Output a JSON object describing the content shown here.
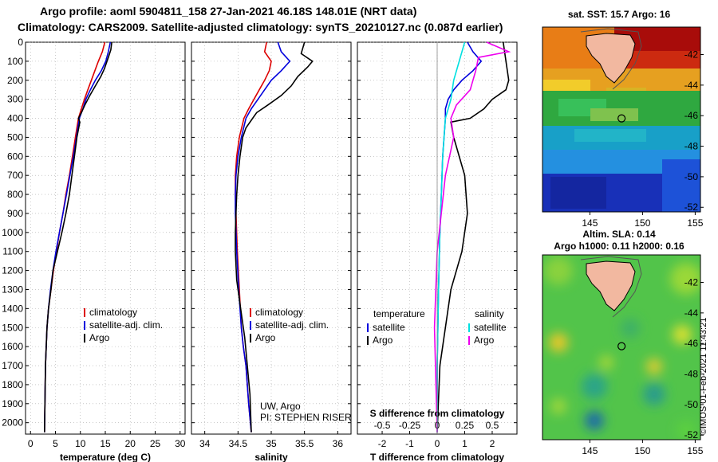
{
  "header": {
    "title_line1": "Argo profile: aoml 5904811_158 27-Jan-2021 46.18S 148.01E (NRT data)",
    "title_line2": "Climatology: CARS2009. Satellite-adjusted climatology: synTS_20210127.nc (0.087d earlier)"
  },
  "stamp": "©IMOS 01-Feb-2021 11:43:21",
  "colors": {
    "climatology": "#dd0000",
    "satellite": "#0000dd",
    "argo": "#000000",
    "sat_salinity": "#00e0e0",
    "argo_salinity": "#ee00ee"
  },
  "chart_data": [
    {
      "type": "line",
      "xlabel": "temperature (deg C)",
      "ylabel": "",
      "xlim": [
        -1,
        31
      ],
      "ylim": [
        2060,
        0
      ],
      "xticks": [
        0,
        5,
        10,
        15,
        20,
        25,
        30
      ],
      "yticks": [
        0,
        100,
        200,
        300,
        400,
        500,
        600,
        700,
        800,
        900,
        1000,
        1100,
        1200,
        1300,
        1400,
        1500,
        1600,
        1700,
        1800,
        1900,
        2000
      ],
      "legend": [
        "climatology",
        "satellite-adj. clim.",
        "Argo"
      ],
      "series": [
        {
          "name": "climatology",
          "x": [
            14.9,
            14.4,
            13.6,
            12.9,
            12.2,
            11.5,
            10.8,
            10.2,
            9.6,
            9.0,
            8.4,
            7.8,
            7.1,
            6.5,
            5.8,
            5.2,
            4.6,
            4.1,
            3.6,
            3.3,
            3.0,
            2.8
          ],
          "y": [
            0,
            50,
            100,
            150,
            200,
            250,
            300,
            350,
            400,
            500,
            600,
            700,
            800,
            900,
            1000,
            1100,
            1200,
            1300,
            1400,
            1500,
            1700,
            2050
          ]
        },
        {
          "name": "satellite-adj. clim.",
          "x": [
            16.0,
            15.6,
            15.1,
            14.2,
            13.0,
            12.0,
            11.1,
            10.5,
            9.8,
            9.2,
            8.6,
            7.9,
            7.2,
            6.5,
            5.8,
            5.1,
            4.5,
            4.0,
            3.6,
            3.3,
            3.0,
            2.8
          ],
          "y": [
            0,
            50,
            100,
            150,
            200,
            250,
            300,
            350,
            400,
            500,
            600,
            700,
            800,
            900,
            1000,
            1100,
            1200,
            1300,
            1400,
            1500,
            1700,
            2050
          ]
        },
        {
          "name": "Argo",
          "x": [
            16.3,
            16.1,
            15.6,
            15.2,
            14.8,
            14.1,
            13.0,
            11.9,
            10.9,
            10.2,
            9.6,
            9.9,
            9.3,
            8.8,
            8.3,
            7.8,
            7.1,
            6.3,
            5.4,
            4.5,
            4.1,
            3.6,
            3.3,
            3.0,
            2.8
          ],
          "y": [
            0,
            40,
            80,
            110,
            140,
            180,
            230,
            280,
            330,
            370,
            400,
            420,
            500,
            600,
            700,
            800,
            900,
            1000,
            1100,
            1200,
            1300,
            1400,
            1500,
            1700,
            2050
          ]
        }
      ]
    },
    {
      "type": "line",
      "xlabel": "salinity",
      "ylabel": "",
      "xlim": [
        33.8,
        36.2
      ],
      "ylim": [
        2060,
        0
      ],
      "xticks": [
        34,
        34.5,
        35,
        35.5,
        36
      ],
      "legend": [
        "climatology",
        "satellite-adj. clim.",
        "Argo"
      ],
      "annotation": [
        "UW, Argo",
        "PI: STEPHEN RISER"
      ],
      "series": [
        {
          "name": "climatology",
          "x": [
            34.93,
            34.9,
            35.0,
            34.97,
            34.9,
            34.82,
            34.74,
            34.66,
            34.59,
            34.52,
            34.48,
            34.46,
            34.46,
            34.47,
            34.49,
            34.52,
            34.55,
            34.58,
            34.62,
            34.66,
            34.7
          ],
          "y": [
            0,
            50,
            100,
            150,
            200,
            250,
            300,
            350,
            400,
            500,
            600,
            700,
            800,
            900,
            1100,
            1300,
            1500,
            1600,
            1700,
            1900,
            2050
          ]
        },
        {
          "name": "satellite-adj. clim.",
          "x": [
            35.1,
            35.15,
            35.28,
            35.15,
            35.0,
            34.9,
            34.8,
            34.7,
            34.62,
            34.55,
            34.5,
            34.47,
            34.46,
            34.46,
            34.48,
            34.51,
            34.55,
            34.58,
            34.62,
            34.66,
            34.7
          ],
          "y": [
            0,
            50,
            100,
            150,
            200,
            250,
            300,
            350,
            400,
            500,
            600,
            700,
            800,
            900,
            1100,
            1300,
            1500,
            1600,
            1700,
            1900,
            2050
          ]
        },
        {
          "name": "Argo",
          "x": [
            35.5,
            35.45,
            35.62,
            35.55,
            35.4,
            35.3,
            35.15,
            34.95,
            34.78,
            34.72,
            34.62,
            34.57,
            34.53,
            34.5,
            34.48,
            34.47,
            34.46,
            34.46,
            34.48,
            34.52,
            34.56,
            34.6,
            34.64,
            34.68,
            34.7
          ],
          "y": [
            0,
            60,
            100,
            130,
            180,
            230,
            280,
            330,
            370,
            400,
            450,
            500,
            600,
            700,
            800,
            900,
            1000,
            1100,
            1250,
            1350,
            1450,
            1550,
            1700,
            1850,
            2050
          ]
        }
      ]
    },
    {
      "type": "line",
      "xlabel": "T difference from climatology",
      "xlabel_top": "S difference from climatology",
      "ylabel": "",
      "xlim": [
        -2.9,
        2.9
      ],
      "ylim": [
        2060,
        0
      ],
      "xticks": [
        -2,
        -1,
        0,
        1,
        2
      ],
      "xticks_top": [
        "-0.5",
        "-0.25",
        "0",
        "0.25",
        "0.5"
      ],
      "legend_left_title": "temperature",
      "legend_right_title": "salinity",
      "legend_left": [
        "satellite",
        "Argo"
      ],
      "legend_right": [
        "satellite",
        "Argo"
      ],
      "series": [
        {
          "name": "satellite",
          "group": "temperature",
          "x": [
            1.1,
            1.3,
            1.6,
            1.3,
            0.9,
            0.6,
            0.4,
            0.3,
            0.3,
            0.2,
            0.15,
            0.1,
            0.05,
            0.0,
            0.0
          ],
          "y": [
            0,
            50,
            100,
            150,
            200,
            250,
            300,
            350,
            400,
            600,
            800,
            1000,
            1300,
            1700,
            2050
          ]
        },
        {
          "name": "Argo",
          "group": "temperature",
          "x": [
            2.4,
            2.5,
            2.6,
            2.5,
            2.0,
            1.7,
            1.2,
            0.5,
            0.6,
            1.0,
            1.1,
            0.9,
            0.5,
            0.3,
            0.1,
            0.0
          ],
          "y": [
            0,
            100,
            200,
            250,
            300,
            350,
            400,
            420,
            500,
            700,
            900,
            1100,
            1300,
            1500,
            1700,
            2050
          ]
        },
        {
          "name": "satellite",
          "group": "salinity",
          "x": [
            1.0,
            0.8,
            0.6,
            0.5,
            0.4,
            0.3,
            0.2,
            0.15,
            0.1,
            0.05,
            0.0,
            0.0
          ],
          "y": [
            0,
            100,
            200,
            300,
            350,
            400,
            600,
            800,
            1000,
            1300,
            1700,
            2050
          ]
        },
        {
          "name": "Argo",
          "group": "salinity",
          "x": [
            1.8,
            2.6,
            1.5,
            1.4,
            1.2,
            0.7,
            0.5,
            0.6,
            0.3,
            0.0,
            -0.1,
            0.0
          ],
          "y": [
            0,
            50,
            80,
            150,
            250,
            330,
            400,
            500,
            700,
            1100,
            1500,
            2050
          ]
        }
      ]
    },
    {
      "type": "heatmap",
      "title": "sat. SST: 15.7  Argo: 16",
      "xticks": [
        145,
        150,
        155
      ],
      "yticks": [
        -42,
        -44,
        -46,
        -48,
        -50,
        -52
      ],
      "xlim": [
        140.5,
        155.5
      ],
      "ylim": [
        -52.3,
        -40.2
      ],
      "profile_location": [
        148.01,
        -46.18
      ]
    },
    {
      "type": "heatmap",
      "title": "Altim. SLA: 0.14",
      "subtitle": "Argo h1000: 0.11 h2000: 0.16",
      "xticks": [
        145,
        150,
        155
      ],
      "yticks": [
        -42,
        -44,
        -46,
        -48,
        -50,
        -52
      ],
      "xlim": [
        140.5,
        155.5
      ],
      "ylim": [
        -52.3,
        -40.2
      ],
      "profile_location": [
        148.01,
        -46.18
      ]
    }
  ]
}
